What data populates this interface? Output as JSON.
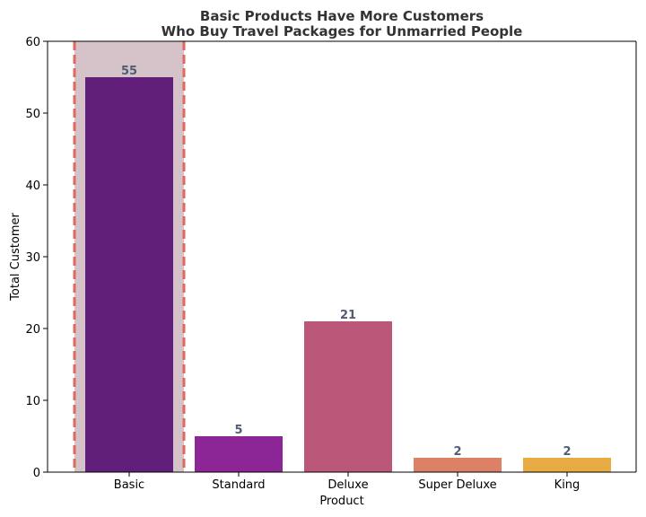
{
  "chart_data": {
    "type": "bar",
    "title_lines": [
      "Basic Products Have More Customers",
      "Who Buy Travel Packages for Unmarried People"
    ],
    "xlabel": "Product",
    "ylabel": "Total Customer",
    "categories": [
      "Basic",
      "Standard",
      "Deluxe",
      "Super Deluxe",
      "King"
    ],
    "values": [
      55,
      5,
      21,
      2,
      2
    ],
    "bar_colors": [
      "#611f7a",
      "#8c2595",
      "#bb5879",
      "#dc8166",
      "#e8aa43"
    ],
    "ylim": [
      0,
      60
    ],
    "yticks": [
      0,
      10,
      20,
      30,
      40,
      50,
      60
    ],
    "grid": false,
    "highlight": {
      "category": "Basic",
      "fill_color": "#d5c3c9",
      "border_color": "#e06a5a",
      "border_style": "dashed"
    },
    "data_label_color": "#4f5d75"
  }
}
